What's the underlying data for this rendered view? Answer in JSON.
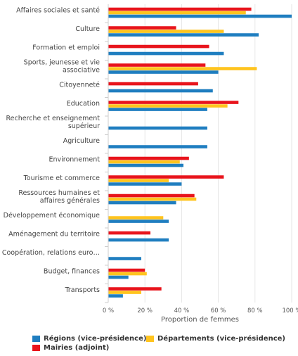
{
  "chart_data": {
    "type": "bar",
    "orientation": "horizontal",
    "categories": [
      [
        "Affaires sociales et santé"
      ],
      [
        "Culture"
      ],
      [
        "Formation et emploi"
      ],
      [
        "Sports, jeunesse et vie",
        "associative"
      ],
      [
        "Citoyenneté"
      ],
      [
        "Education"
      ],
      [
        "Recherche et enseignement",
        "supérieur"
      ],
      [
        "Agriculture"
      ],
      [
        "Environnement"
      ],
      [
        "Tourisme et commerce"
      ],
      [
        "Ressources humaines et",
        "affaires générales"
      ],
      [
        "Développement économique"
      ],
      [
        "Aménagement du territoire"
      ],
      [
        "Coopération, relations euro…"
      ],
      [
        "Budget, finances"
      ],
      [
        "Transports"
      ]
    ],
    "series": [
      {
        "name": "Mairies (adjoint)",
        "color": "#e8141c",
        "values": [
          78,
          37,
          55,
          53,
          49,
          71,
          null,
          null,
          44,
          63,
          47,
          null,
          23,
          null,
          20,
          29
        ]
      },
      {
        "name": "Départements (vice-présidence)",
        "color": "#ffc41e",
        "values": [
          75,
          63,
          null,
          81,
          null,
          65,
          null,
          null,
          39,
          33,
          48,
          30,
          null,
          null,
          21,
          18
        ]
      },
      {
        "name": "Régions (vice-présidence)",
        "color": "#1f7ec0",
        "values": [
          100,
          82,
          63,
          60,
          57,
          54,
          54,
          54,
          41,
          40,
          37,
          33,
          33,
          18,
          11,
          8
        ]
      }
    ],
    "x_ticks": [
      "0 %",
      "20 %",
      "40 %",
      "60 %",
      "80 %",
      "100 %"
    ],
    "xlim": [
      0,
      100
    ],
    "xlabel": "Proportion de femmes",
    "ylabel": "",
    "grid": true,
    "legend_position": "bottom",
    "legend_entries": [
      {
        "name": "Régions (vice-présidence)",
        "color": "#1f7ec0"
      },
      {
        "name": "Départements (vice-présidence)",
        "color": "#ffc41e"
      },
      {
        "name": "Mairies (adjoint)",
        "color": "#e8141c"
      }
    ]
  }
}
